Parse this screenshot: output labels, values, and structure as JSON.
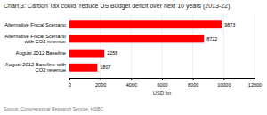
{
  "chart_data": {
    "type": "bar",
    "orientation": "horizontal",
    "title": "Chart 3: Carbon Tax could  reduce US Budget deficit over next 10 years (2013-22)",
    "categories": [
      "Alternative Fiscal Scenario",
      "Alternative Fiscal Scenario\nwith CO2 revenue",
      "August 2012 Baseline",
      "August 2012 Baseline with\nCO2 revenue"
    ],
    "values": [
      9873,
      8722,
      2258,
      1807
    ],
    "color": "#ff0000",
    "xlabel": "USD bn",
    "source": "Source: Congressional Research Service, HSBC",
    "xlim": [
      0,
      12000
    ],
    "xticks": [
      0,
      2000,
      4000,
      6000,
      8000,
      10000,
      12000
    ],
    "grid": true,
    "data_labels": true
  }
}
